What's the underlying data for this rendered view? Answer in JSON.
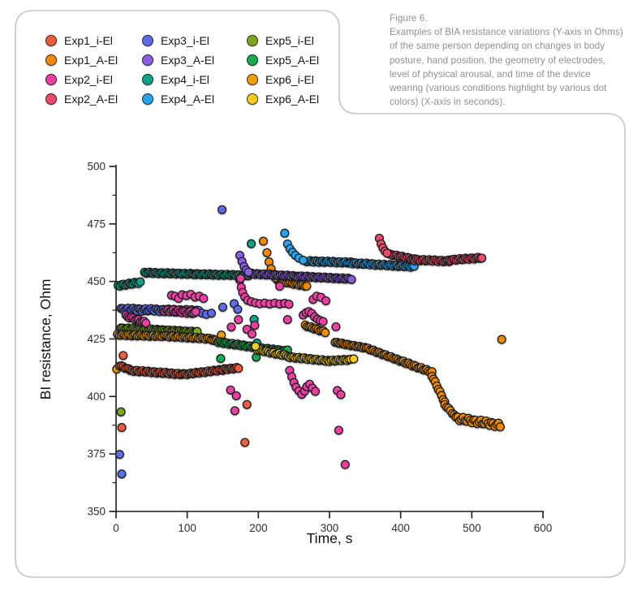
{
  "figure": {
    "caption_title": "Figure 6.",
    "caption_body": "Examples of BIA resistance variations (Y-axis in Ohms) of the same person depending on changes in body posture, hand position, the geometry of electrodes, level of physical arousal, and time of the device wearing (various conditions highlight by various dot colors) (X-axis in seconds)."
  },
  "layout_colors": {
    "card_border": "#c6c6c6",
    "caption_text": "#8f8f8f",
    "axis": "#1a1a1a",
    "tick_label": "#2e2e2e"
  },
  "chart_data": {
    "type": "scatter",
    "title": "",
    "xlabel": "Time, s",
    "ylabel": "BI resistance, Ohm",
    "xlim": [
      0,
      600
    ],
    "ylim": [
      350,
      500
    ],
    "x_ticks": [
      0,
      100,
      200,
      300,
      400,
      500,
      600
    ],
    "y_ticks": [
      350,
      375,
      400,
      425,
      450,
      475,
      500
    ],
    "y_minor_ticks": [
      362.5,
      387.5,
      412.5,
      437.5,
      462.5,
      487.5
    ],
    "grid": false,
    "legend_position": "top-left-3-columns",
    "marker": {
      "radius": 4.9,
      "stroke": "#1c1c1c",
      "stroke_width": 1.3
    },
    "draw_order": [
      "exp1_a",
      "exp3_i",
      "exp4_i",
      "exp3_a",
      "exp4_a",
      "exp2_a",
      "exp5_i",
      "exp6_i",
      "exp5_a",
      "exp6_a",
      "exp1_i",
      "exp2_i"
    ],
    "series": [
      {
        "id": "exp1_i",
        "label": "Exp1_i-El",
        "color": "#ee5b3d",
        "segments": [
          {
            "x0": 5,
            "y0": 413.5,
            "x1": 20,
            "y1": 411.5,
            "wave": 0.3
          },
          {
            "x0": 20,
            "y0": 411.3,
            "x1": 95,
            "y1": 409.6,
            "wave": 0.35
          },
          {
            "x0": 95,
            "y0": 409.6,
            "x1": 150,
            "y1": 411.6,
            "wave": 0.3
          },
          {
            "x0": 150,
            "y0": 411.8,
            "x1": 172,
            "y1": 412.4,
            "wave": 0.3
          }
        ],
        "points": [
          [
            10,
            417.8
          ],
          [
            8,
            386.5
          ],
          [
            181,
            380
          ],
          [
            184,
            396.5
          ]
        ]
      },
      {
        "id": "exp1_a",
        "label": "Exp1_A-El",
        "color": "#f08a00",
        "segments": [
          {
            "x0": 227,
            "y0": 450.3,
            "x1": 268,
            "y1": 448,
            "wave": 0.3
          },
          {
            "x0": 266,
            "y0": 430.8,
            "x1": 294,
            "y1": 428,
            "wave": 0.3
          },
          {
            "x0": 308,
            "y0": 423.5,
            "x1": 352,
            "y1": 421,
            "wave": 0.25
          },
          {
            "x0": 352,
            "y0": 421,
            "x1": 404,
            "y1": 415,
            "wave": 0.3
          },
          {
            "x0": 404,
            "y0": 415,
            "x1": 444,
            "y1": 410.5,
            "wave": 0.4
          },
          {
            "x0": 444,
            "y0": 409,
            "x1": 462,
            "y1": 397.5,
            "step": 2.2,
            "wave": 0.3
          },
          {
            "x0": 462,
            "y0": 396.5,
            "x1": 478,
            "y1": 391,
            "wave": 0.3
          },
          {
            "x0": 478,
            "y0": 390.5,
            "x1": 540,
            "y1": 387.5,
            "wave": 0.9
          }
        ],
        "points": [
          [
            207,
            467.5
          ],
          [
            212,
            462.5
          ],
          [
            215,
            458.5
          ],
          [
            218,
            455.5
          ],
          [
            221,
            453
          ],
          [
            224,
            451.5
          ],
          [
            542,
            424.8
          ]
        ]
      },
      {
        "id": "exp2_i",
        "label": "Exp2_i-El",
        "color": "#ec3fa4",
        "segments": [
          {
            "x0": 14,
            "y0": 435,
            "x1": 42,
            "y1": 432,
            "wave": 0.4
          },
          {
            "x0": 68,
            "y0": 437.5,
            "x1": 112,
            "y1": 436.3,
            "wave": 0.5
          }
        ],
        "points": [
          [
            78,
            444
          ],
          [
            83,
            443.6
          ],
          [
            88,
            442.6
          ],
          [
            93,
            444.2
          ],
          [
            99,
            443.8
          ],
          [
            105,
            444.4
          ],
          [
            111,
            443.2
          ],
          [
            117,
            443.6
          ],
          [
            123,
            442.6
          ],
          [
            174,
            450.6
          ],
          [
            176,
            447.5
          ],
          [
            178,
            445.2
          ],
          [
            181,
            443.2
          ],
          [
            185,
            441.8
          ],
          [
            190,
            441.2
          ],
          [
            196,
            440.7
          ],
          [
            202,
            440.3
          ],
          [
            209,
            440.6
          ],
          [
            216,
            440.2
          ],
          [
            223,
            440.6
          ],
          [
            230,
            440.2
          ],
          [
            237,
            440.5
          ],
          [
            243,
            440.1
          ],
          [
            230,
            447.9
          ],
          [
            277,
            442.2
          ],
          [
            282,
            443.6
          ],
          [
            288,
            443.1
          ],
          [
            295,
            441.6
          ],
          [
            263,
            435.4
          ],
          [
            267,
            436.4
          ],
          [
            271,
            436.9
          ],
          [
            275,
            436.1
          ],
          [
            279,
            434.6
          ],
          [
            283,
            433.6
          ],
          [
            287,
            433
          ],
          [
            291,
            432.6
          ],
          [
            244,
            411.3
          ],
          [
            247,
            408.6
          ],
          [
            250,
            406
          ],
          [
            253,
            404
          ],
          [
            257,
            402.4
          ],
          [
            261,
            400.9
          ],
          [
            265,
            402.3
          ],
          [
            268,
            404.2
          ],
          [
            272,
            405.3
          ],
          [
            276,
            403.6
          ],
          [
            280,
            402.2
          ],
          [
            172,
            433.4
          ],
          [
            162,
            430.2
          ],
          [
            195,
            430.9
          ],
          [
            241,
            433.4
          ],
          [
            309,
            430.3
          ],
          [
            175,
            451.3
          ],
          [
            184,
            429.2
          ],
          [
            191,
            427.2
          ],
          [
            161,
            402.8
          ],
          [
            169,
            400.3
          ],
          [
            167,
            393.8
          ],
          [
            311,
            402.6
          ],
          [
            316,
            400.8
          ],
          [
            313,
            385.3
          ],
          [
            322,
            370.4
          ]
        ]
      },
      {
        "id": "exp2_a",
        "label": "Exp2_A-El",
        "color": "#ef4a6b",
        "segments": [
          {
            "x0": 384,
            "y0": 461.8,
            "x1": 420,
            "y1": 459.6,
            "wave": 0.3
          },
          {
            "x0": 420,
            "y0": 459.4,
            "x1": 468,
            "y1": 458.8,
            "wave": 0.35
          },
          {
            "x0": 468,
            "y0": 459.3,
            "x1": 514,
            "y1": 460.3,
            "wave": 0.35
          }
        ],
        "points": [
          [
            370,
            468.8
          ],
          [
            372.5,
            466.3
          ],
          [
            375,
            464.6
          ],
          [
            378,
            463.2
          ],
          [
            381,
            462.3
          ]
        ]
      },
      {
        "id": "exp3_i",
        "label": "Exp3_i-El",
        "color": "#5e6be8",
        "segments": [
          {
            "x0": 7,
            "y0": 437.9,
            "x1": 116,
            "y1": 437.1,
            "wave": 0.6
          }
        ],
        "points": [
          [
            121,
            436.2
          ],
          [
            127,
            435.7
          ],
          [
            134,
            436.2
          ],
          [
            150,
            438.8
          ],
          [
            166,
            440.3
          ],
          [
            171,
            437.9
          ],
          [
            149,
            481.2
          ],
          [
            5,
            374.8
          ],
          [
            8,
            366.3
          ]
        ]
      },
      {
        "id": "exp3_a",
        "label": "Exp3_A-El",
        "color": "#8c5ce4",
        "segments": [
          {
            "x0": 188,
            "y0": 453.4,
            "x1": 256,
            "y1": 452.2,
            "wave": 0.3
          },
          {
            "x0": 256,
            "y0": 452.2,
            "x1": 331,
            "y1": 451.1,
            "wave": 0.3
          }
        ],
        "points": [
          [
            174,
            461.3
          ],
          [
            177,
            458.7
          ],
          [
            180,
            456.5
          ],
          [
            183,
            455
          ],
          [
            186,
            454
          ]
        ]
      },
      {
        "id": "exp4_i",
        "label": "Exp4_i-El",
        "color": "#0ca188",
        "segments": [
          {
            "x0": 3,
            "y0": 448.2,
            "x1": 34,
            "y1": 449.6,
            "wave": 0.4
          },
          {
            "x0": 40,
            "y0": 453.8,
            "x1": 112,
            "y1": 453.2,
            "wave": 0.3
          },
          {
            "x0": 112,
            "y0": 453.2,
            "x1": 186,
            "y1": 452.6,
            "wave": 0.3
          }
        ],
        "points": [
          [
            190,
            466.4
          ],
          [
            194,
            433.5
          ],
          [
            198,
            423.2
          ]
        ]
      },
      {
        "id": "exp4_a",
        "label": "Exp4_A-El",
        "color": "#25a4ec",
        "segments": [
          {
            "x0": 268,
            "y0": 458.8,
            "x1": 330,
            "y1": 458.2,
            "wave": 0.35
          },
          {
            "x0": 330,
            "y0": 458,
            "x1": 419,
            "y1": 456.4,
            "wave": 0.35
          }
        ],
        "points": [
          [
            237,
            471
          ],
          [
            241,
            466.3
          ],
          [
            244.5,
            464.2
          ],
          [
            248,
            462.7
          ],
          [
            252,
            461.4
          ],
          [
            257,
            460.2
          ],
          [
            263,
            459.2
          ]
        ]
      },
      {
        "id": "exp5_i",
        "label": "Exp5_i-El",
        "color": "#7fa818",
        "segments": [
          {
            "x0": 7,
            "y0": 429.6,
            "x1": 60,
            "y1": 428.9,
            "wave": 0.3
          },
          {
            "x0": 60,
            "y0": 428.9,
            "x1": 114,
            "y1": 428,
            "wave": 0.3
          }
        ],
        "points": [
          [
            7,
            393.3
          ]
        ]
      },
      {
        "id": "exp5_a",
        "label": "Exp5_A-El",
        "color": "#15ac4f",
        "segments": [
          {
            "x0": 144,
            "y0": 423.6,
            "x1": 196,
            "y1": 421.4,
            "wave": 0.35
          },
          {
            "x0": 196,
            "y0": 421.2,
            "x1": 240,
            "y1": 419.7,
            "wave": 0.3
          }
        ],
        "points": [
          [
            147,
            416.5
          ],
          [
            197,
            417.1
          ],
          [
            241,
            420.2
          ]
        ]
      },
      {
        "id": "exp6_i",
        "label": "Exp6_i-El",
        "color": "#f09d08",
        "segments": [
          {
            "x0": 2,
            "y0": 426.8,
            "x1": 70,
            "y1": 426.2,
            "wave": 0.3
          },
          {
            "x0": 70,
            "y0": 426.2,
            "x1": 136,
            "y1": 425,
            "wave": 0.3
          },
          {
            "x0": 136,
            "y0": 424.6,
            "x1": 151,
            "y1": 423.6,
            "wave": 0.3
          }
        ],
        "points": [
          [
            1,
            411.9
          ],
          [
            148,
            426.7
          ]
        ]
      },
      {
        "id": "exp6_a",
        "label": "Exp6_A-El",
        "color": "#f5cc19",
        "segments": [
          {
            "x0": 199,
            "y0": 420.3,
            "x1": 242,
            "y1": 417.6,
            "wave": 0.35
          },
          {
            "x0": 242,
            "y0": 417.2,
            "x1": 300,
            "y1": 415.4,
            "wave": 0.3
          },
          {
            "x0": 300,
            "y0": 415.5,
            "x1": 330,
            "y1": 416,
            "wave": 0.3
          }
        ],
        "points": [
          [
            334,
            416.3
          ],
          [
            196,
            421.8
          ]
        ]
      }
    ]
  }
}
